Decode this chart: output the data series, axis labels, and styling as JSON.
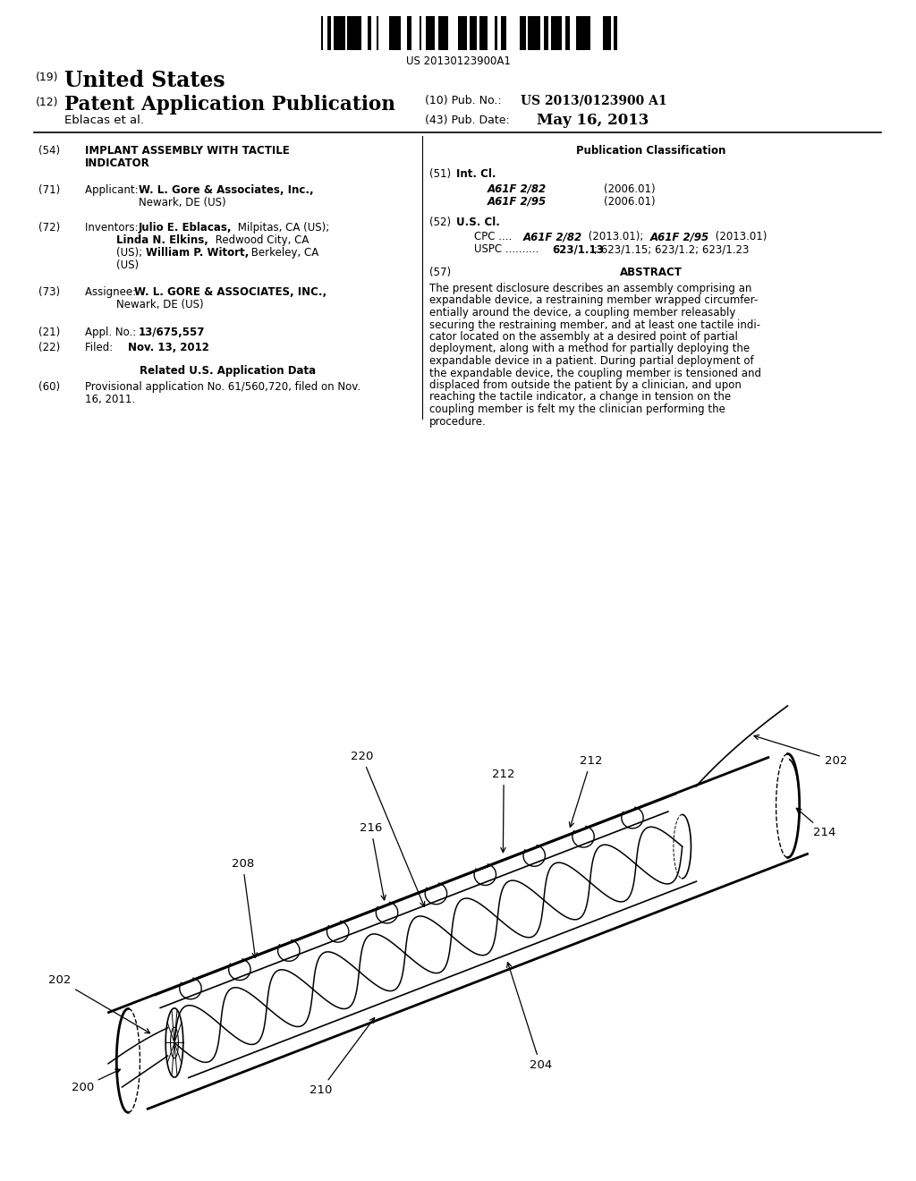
{
  "background_color": "#ffffff",
  "barcode_text": "US 20130123900A1",
  "header_country": "United States",
  "header_doc_type": "Patent Application Publication",
  "header_pub_no": "US 2013/0123900 A1",
  "header_author": "Eblacas et al.",
  "header_pub_date": "May 16, 2013",
  "left_fields": {
    "54_title": "IMPLANT ASSEMBLY WITH TACTILE\nINDICATOR",
    "71_text": "Applicant:",
    "71_bold": "W. L. Gore & Associates, Inc.,",
    "71_rest": " Newark,\n           DE (US)",
    "72_text": "Inventors:",
    "72_bold1": "Julio E. Eblacas,",
    "72_rest1": " Milpitas, CA (US);",
    "72_bold2": "Linda N. Elkins,",
    "72_rest2": " Redwood City, CA",
    "72_bold3": "William P. Witort,",
    "72_rest3": " Berkeley, CA",
    "72_rest4": "(US)",
    "73_text": "Assignee:",
    "73_bold": "W. L. GORE & ASSOCIATES, INC.,",
    "73_rest": "\n           Newark, DE (US)",
    "21_text": "Appl. No.:",
    "21_bold": "13/675,557",
    "22_text": "Filed:",
    "22_bold": "Nov. 13, 2012",
    "related_title": "Related U.S. Application Data",
    "60_text": "Provisional application No. 61/560,720, filed on Nov.\n16, 2011."
  },
  "right_fields": {
    "pub_class": "Publication Classification",
    "51_title": "Int. Cl.",
    "51_a": "A61F 2/82",
    "51_a_date": "(2006.01)",
    "51_b": "A61F 2/95",
    "51_b_date": "(2006.01)",
    "52_title": "U.S. Cl.",
    "52_cpc1": "CPC .... ",
    "52_cpc1_bold": "A61F 2/82",
    "52_cpc1_rest": " (2013.01); ",
    "52_cpc2_bold": "A61F 2/95",
    "52_cpc2_rest": " (2013.01)",
    "52_uspc1": "USPC .......... ",
    "52_uspc1_bold": "623/1.13",
    "52_uspc1_rest": "; 623/1.15; 623/1.2; 623/1.23",
    "57_title": "ABSTRACT",
    "abstract": "The present disclosure describes an assembly comprising an\nexpandable device, a restraining member wrapped circumfer-\nentially around the device, a coupling member releasably\nsecuring the restraining member, and at least one tactile indi-\ncator located on the assembly at a desired point of partial\ndeployment, along with a method for partially deploying the\nexpandable device in a patient. During partial deployment of\nthe expandable device, the coupling member is tensioned and\ndisplaced from outside the patient by a clinician, and upon\nreaching the tactile indicator, a change in tension on the\ncoupling member is felt my the clinician performing the\nprocedure."
  }
}
